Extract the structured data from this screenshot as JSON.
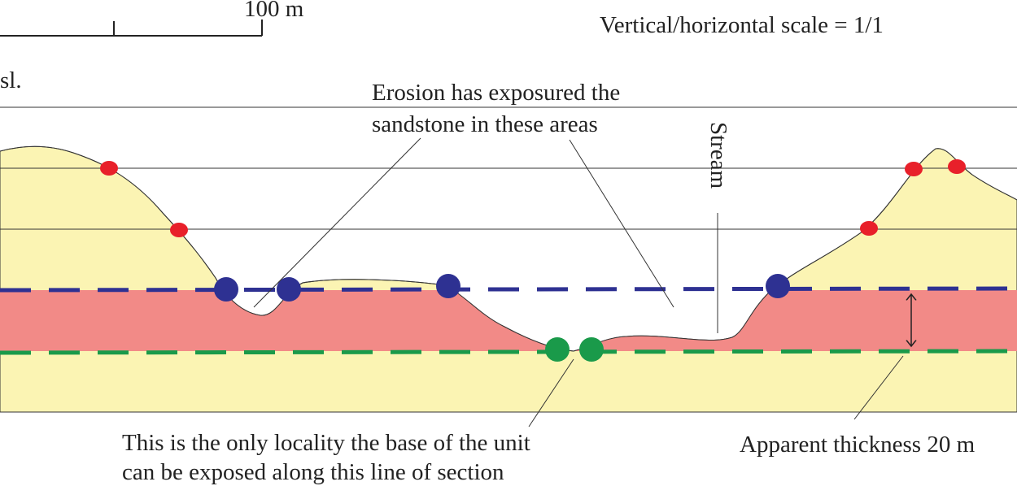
{
  "scale_bar": {
    "label": "100 m"
  },
  "scale_note": "Vertical/horizontal scale = 1/1",
  "axis_label": "sl.",
  "annotations": {
    "erosion": [
      "Erosion has exposured the",
      "sandstone in these areas"
    ],
    "stream": "Stream",
    "base": [
      "This is the only locality the base of the unit",
      "can be exposed along this line of section"
    ],
    "thickness": "Apparent thickness 20 m"
  }
}
